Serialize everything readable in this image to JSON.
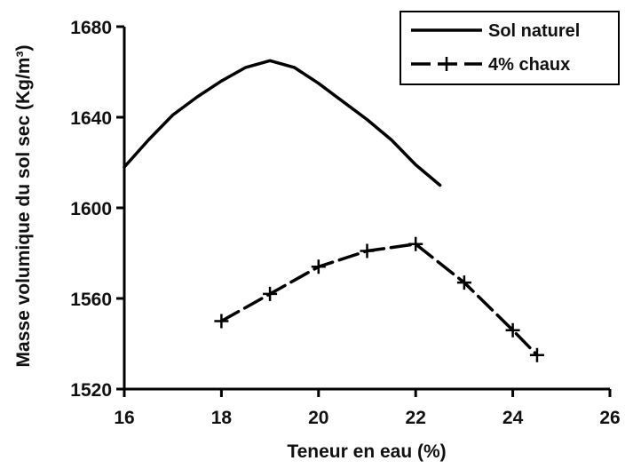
{
  "chart_data": {
    "type": "line",
    "xlabel": "Teneur en eau (%)",
    "ylabel": "Masse volumique du sol sec (Kg/m³)",
    "xlim": [
      16,
      26
    ],
    "ylim": [
      1520,
      1680
    ],
    "xticks": [
      16,
      18,
      20,
      22,
      24,
      26
    ],
    "yticks": [
      1520,
      1560,
      1600,
      1640,
      1680
    ],
    "x_tick_labels": [
      "16",
      "18",
      "20",
      "22",
      "24",
      "26"
    ],
    "y_tick_labels": [
      "1520",
      "1560",
      "1600",
      "1640",
      "1680"
    ],
    "grid": false,
    "legend_position": "top-right",
    "series": [
      {
        "name": "Sol naturel",
        "style": "solid",
        "color": "#000000",
        "markers": false,
        "points": [
          [
            16,
            1618
          ],
          [
            16.5,
            1630
          ],
          [
            17,
            1641
          ],
          [
            17.5,
            1649
          ],
          [
            18,
            1656
          ],
          [
            18.5,
            1662
          ],
          [
            19,
            1665
          ],
          [
            19.5,
            1662
          ],
          [
            20,
            1655
          ],
          [
            20.5,
            1647
          ],
          [
            21,
            1639
          ],
          [
            21.5,
            1630
          ],
          [
            22,
            1619
          ],
          [
            22.5,
            1610
          ]
        ]
      },
      {
        "name": "4% chaux",
        "style": "dashed",
        "color": "#000000",
        "markers": true,
        "points": [
          [
            18,
            1550
          ],
          [
            19,
            1562
          ],
          [
            20,
            1574
          ],
          [
            21,
            1581
          ],
          [
            22,
            1584
          ],
          [
            23,
            1567
          ],
          [
            24,
            1546
          ],
          [
            24.5,
            1535
          ]
        ]
      }
    ]
  }
}
